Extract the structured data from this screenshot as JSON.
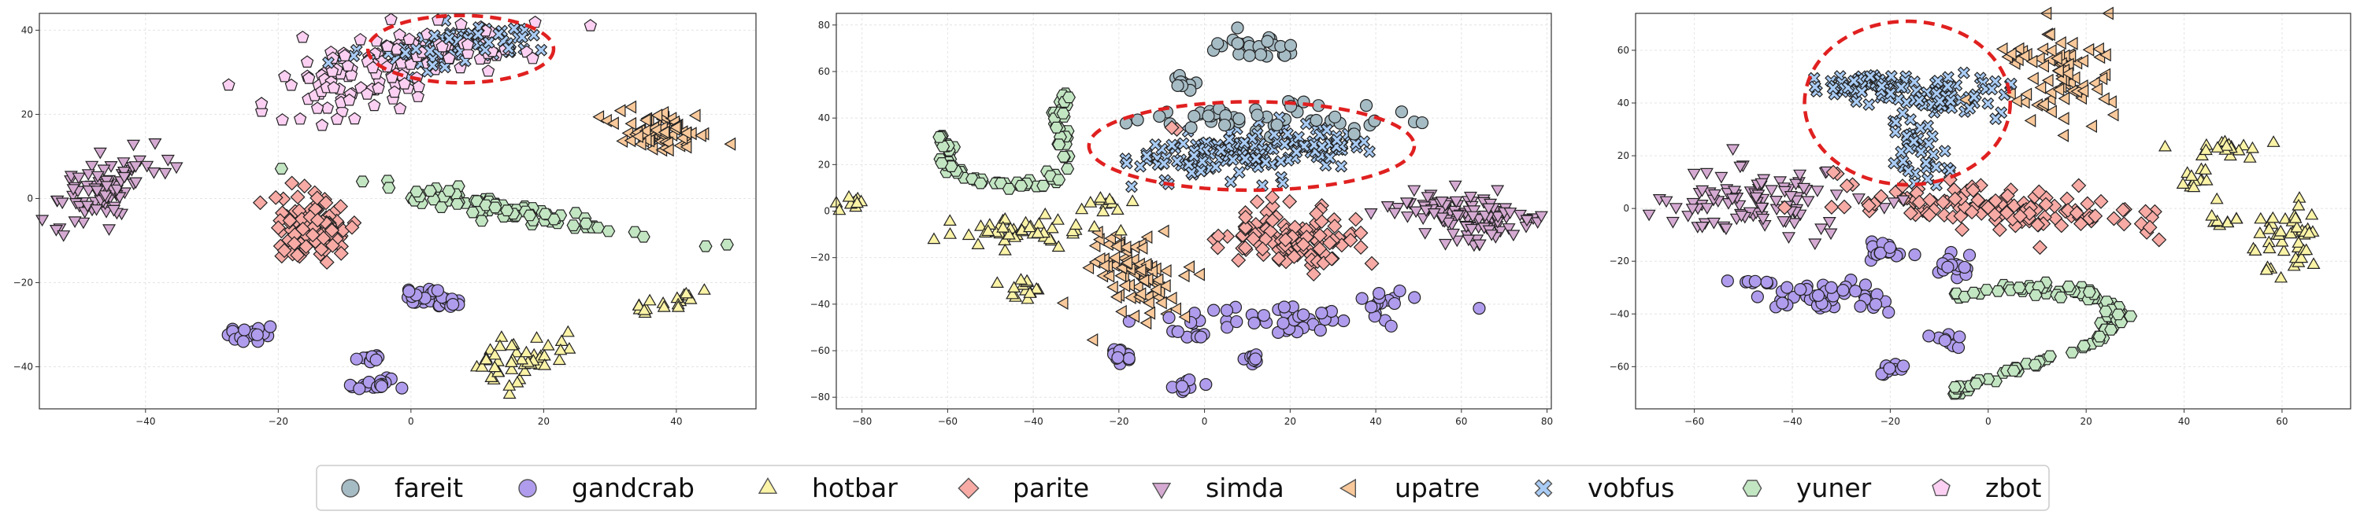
{
  "chart_data": [
    {
      "type": "scatter",
      "panel": "left",
      "title": "",
      "xlabel": "",
      "ylabel": "",
      "xlim": [
        -56,
        52
      ],
      "ylim": [
        -50,
        44
      ],
      "xticks": [
        -40,
        -20,
        0,
        20,
        40
      ],
      "yticks": [
        -40,
        -20,
        0,
        20,
        40
      ],
      "grid": true,
      "highlight_ellipse": {
        "cx": 7.5,
        "cy": 35.5,
        "rx": 14,
        "ry": 8
      },
      "clusters": [
        {
          "class": "zbot",
          "cx": -9,
          "cy": 28,
          "sx": 6.5,
          "sy": 5,
          "rot": 35,
          "n": 90
        },
        {
          "class": "zbot",
          "cx": 5,
          "cy": 36,
          "sx": 7,
          "sy": 2.5,
          "rot": 8,
          "n": 60
        },
        {
          "class": "vobfus",
          "cx": 7,
          "cy": 36,
          "sx": 7,
          "sy": 2.4,
          "rot": 8,
          "n": 90
        },
        {
          "class": "simda",
          "cx": -46,
          "cy": 3,
          "sx": 5,
          "sy": 3,
          "rot": 50,
          "n": 90
        },
        {
          "class": "parite",
          "cx": -14.5,
          "cy": -7,
          "sx": 3.2,
          "sy": 3.8,
          "rot": 0,
          "n": 110
        },
        {
          "class": "upatre",
          "cx": 38,
          "cy": 16,
          "sx": 3.6,
          "sy": 2.4,
          "rot": -5,
          "n": 75
        },
        {
          "class": "yuner",
          "cx": 14,
          "cy": -2.5,
          "sx": 12,
          "sy": 1.1,
          "rot": -16,
          "n": 85
        },
        {
          "class": "gandcrab",
          "cx": 2.5,
          "cy": -23.5,
          "sx": 2.2,
          "sy": 1.1,
          "rot": 0,
          "n": 30
        },
        {
          "class": "gandcrab",
          "cx": -24,
          "cy": -32.5,
          "sx": 2,
          "sy": 0.8,
          "rot": 0,
          "n": 20
        },
        {
          "class": "gandcrab",
          "cx": -6,
          "cy": -38.5,
          "sx": 1.4,
          "sy": 0.7,
          "rot": 0,
          "n": 10
        },
        {
          "class": "gandcrab",
          "cx": -6,
          "cy": -44,
          "sx": 2,
          "sy": 0.9,
          "rot": 0,
          "n": 18
        },
        {
          "class": "hotbar",
          "cx": 17,
          "cy": -38,
          "sx": 4,
          "sy": 2.6,
          "rot": 30,
          "n": 45
        },
        {
          "class": "hotbar",
          "cx": 38.5,
          "cy": -24.5,
          "sx": 2.2,
          "sy": 1.6,
          "rot": 20,
          "n": 18
        }
      ]
    },
    {
      "type": "scatter",
      "panel": "middle",
      "title": "",
      "xlabel": "",
      "ylabel": "",
      "xlim": [
        -86,
        81
      ],
      "ylim": [
        -85,
        85
      ],
      "xticks": [
        -80,
        -60,
        -40,
        -20,
        0,
        20,
        40,
        60,
        80
      ],
      "yticks": [
        -80,
        -60,
        -40,
        -20,
        0,
        20,
        40,
        60,
        80
      ],
      "grid": true,
      "highlight_ellipse": {
        "cx": 11,
        "cy": 28,
        "rx": 38,
        "ry": 19
      },
      "clusters": [
        {
          "class": "fareit",
          "cx": 12,
          "cy": 70,
          "sx": 5,
          "sy": 3,
          "rot": -15,
          "n": 30
        },
        {
          "class": "fareit",
          "cx": -5,
          "cy": 55,
          "sx": 2,
          "sy": 2,
          "rot": 0,
          "n": 10
        },
        {
          "class": "fareit",
          "cx": 10,
          "cy": 40,
          "sx": 14,
          "sy": 3,
          "rot": 0,
          "n": 55
        },
        {
          "class": "vobfus",
          "cx": 6,
          "cy": 24,
          "sx": 11,
          "sy": 5,
          "rot": 5,
          "n": 110
        },
        {
          "class": "vobfus",
          "cx": 26,
          "cy": 30,
          "sx": 6,
          "sy": 5,
          "rot": 0,
          "n": 50
        },
        {
          "class": "parite",
          "cx": 21,
          "cy": -12,
          "sx": 8,
          "sy": 6,
          "rot": -30,
          "n": 120
        },
        {
          "class": "parite",
          "cx": -7,
          "cy": 36,
          "sx": 1,
          "sy": 1,
          "rot": 0,
          "n": 2
        },
        {
          "class": "simda",
          "cx": 59,
          "cy": 0,
          "sx": 10,
          "sy": 3.5,
          "rot": -15,
          "n": 80
        },
        {
          "class": "simda",
          "cx": 64,
          "cy": -8,
          "sx": 4,
          "sy": 4,
          "rot": 0,
          "n": 30
        },
        {
          "class": "upatre",
          "cx": -16,
          "cy": -25,
          "sx": 5,
          "sy": 9,
          "rot": 20,
          "n": 90
        },
        {
          "class": "hotbar",
          "cx": -44,
          "cy": -10,
          "sx": 8,
          "sy": 3,
          "rot": 0,
          "n": 45
        },
        {
          "class": "hotbar",
          "cx": -42,
          "cy": -33,
          "sx": 3,
          "sy": 3,
          "rot": 0,
          "n": 15
        },
        {
          "class": "hotbar",
          "cx": -82,
          "cy": 2,
          "sx": 2,
          "sy": 2,
          "rot": 0,
          "n": 10
        },
        {
          "class": "hotbar",
          "cx": -23,
          "cy": 3,
          "sx": 2.5,
          "sy": 2,
          "rot": 0,
          "n": 10
        },
        {
          "class": "gandcrab",
          "cx": 20,
          "cy": -46,
          "sx": 14,
          "sy": 3,
          "rot": 0,
          "n": 45
        },
        {
          "class": "gandcrab",
          "cx": -20,
          "cy": -62,
          "sx": 2,
          "sy": 2,
          "rot": 0,
          "n": 14
        },
        {
          "class": "gandcrab",
          "cx": -5,
          "cy": -75,
          "sx": 2,
          "sy": 1.5,
          "rot": 0,
          "n": 10
        },
        {
          "class": "gandcrab",
          "cx": 11,
          "cy": -64,
          "sx": 1.5,
          "sy": 1.5,
          "rot": 0,
          "n": 8
        },
        {
          "class": "gandcrab",
          "cx": -2,
          "cy": -54,
          "sx": 2,
          "sy": 1.5,
          "rot": 0,
          "n": 8
        },
        {
          "class": "gandcrab",
          "cx": 42,
          "cy": -38,
          "sx": 3,
          "sy": 2,
          "rot": 0,
          "n": 12
        }
      ],
      "curves": [
        {
          "class": "yuner",
          "n": 90,
          "spread": 0.9,
          "points": [
            [
              -61,
              32
            ],
            [
              -60,
              20
            ],
            [
              -55,
              14
            ],
            [
              -45,
              11
            ],
            [
              -38,
              12
            ],
            [
              -33,
              18
            ],
            [
              -33,
              30
            ],
            [
              -34,
              42
            ],
            [
              -32,
              52
            ]
          ]
        }
      ]
    },
    {
      "type": "scatter",
      "panel": "right",
      "title": "",
      "xlabel": "",
      "ylabel": "",
      "xlim": [
        -72,
        74
      ],
      "ylim": [
        -76,
        74
      ],
      "xticks": [
        -60,
        -40,
        -20,
        0,
        20,
        40,
        60
      ],
      "yticks": [
        -60,
        -40,
        -20,
        0,
        20,
        40,
        60
      ],
      "grid": true,
      "highlight_ellipse": {
        "cx": -16.5,
        "cy": 40,
        "rx": 21,
        "ry": 31
      },
      "clusters": [
        {
          "class": "vobfus",
          "cx": -22,
          "cy": 47,
          "sx": 6,
          "sy": 3,
          "rot": 0,
          "n": 70
        },
        {
          "class": "vobfus",
          "cx": -8,
          "cy": 43,
          "sx": 6,
          "sy": 4,
          "rot": 0,
          "n": 45
        },
        {
          "class": "vobfus",
          "cx": -15,
          "cy": 24,
          "sx": 3,
          "sy": 9,
          "rot": 10,
          "n": 40
        },
        {
          "class": "parite",
          "cx": 2,
          "cy": 0,
          "sx": 17,
          "sy": 4,
          "rot": -8,
          "n": 130
        },
        {
          "class": "simda",
          "cx": -48,
          "cy": 3,
          "sx": 10,
          "sy": 7,
          "rot": 0,
          "n": 100
        },
        {
          "class": "upatre",
          "cx": 15,
          "cy": 50,
          "sx": 5,
          "sy": 9,
          "rot": 0,
          "n": 80
        },
        {
          "class": "upatre",
          "cx": 6,
          "cy": 58,
          "sx": 2,
          "sy": 2,
          "rot": 0,
          "n": 8
        },
        {
          "class": "hotbar",
          "cx": 60,
          "cy": -12,
          "sx": 4,
          "sy": 7,
          "rot": 0,
          "n": 45
        },
        {
          "class": "hotbar",
          "cx": 50,
          "cy": 22,
          "sx": 5,
          "sy": 1.5,
          "rot": 0,
          "n": 18
        },
        {
          "class": "hotbar",
          "cx": 42,
          "cy": 10,
          "sx": 2,
          "sy": 3,
          "rot": 0,
          "n": 12
        },
        {
          "class": "hotbar",
          "cx": 49,
          "cy": -5,
          "sx": 2,
          "sy": 1.2,
          "rot": 0,
          "n": 8
        },
        {
          "class": "gandcrab",
          "cx": -33,
          "cy": -34,
          "sx": 7,
          "sy": 3,
          "rot": -10,
          "n": 45
        },
        {
          "class": "gandcrab",
          "cx": -20,
          "cy": -16,
          "sx": 3,
          "sy": 1.5,
          "rot": 0,
          "n": 18
        },
        {
          "class": "gandcrab",
          "cx": -8,
          "cy": -21,
          "sx": 2,
          "sy": 3,
          "rot": 0,
          "n": 15
        },
        {
          "class": "gandcrab",
          "cx": -20,
          "cy": -61,
          "sx": 1.5,
          "sy": 1.5,
          "rot": 0,
          "n": 10
        },
        {
          "class": "gandcrab",
          "cx": -8,
          "cy": -50,
          "sx": 2,
          "sy": 1.5,
          "rot": 0,
          "n": 10
        },
        {
          "class": "gandcrab",
          "cx": -47,
          "cy": -28,
          "sx": 2,
          "sy": 1,
          "rot": 0,
          "n": 8
        }
      ],
      "curves": [
        {
          "class": "yuner",
          "n": 110,
          "spread": 1.0,
          "points": [
            [
              -8,
              -34
            ],
            [
              5,
              -30
            ],
            [
              18,
              -31
            ],
            [
              25,
              -36
            ],
            [
              27,
              -42
            ],
            [
              22,
              -50
            ],
            [
              10,
              -58
            ],
            [
              -2,
              -66
            ],
            [
              -8,
              -69
            ]
          ]
        }
      ]
    }
  ],
  "legend": {
    "placement": "bottom-center",
    "items": [
      {
        "label": "fareit",
        "marker": "circle",
        "color": "#a6bcc5"
      },
      {
        "label": "gandcrab",
        "marker": "circle",
        "color": "#b09ced"
      },
      {
        "label": "hotbar",
        "marker": "triangle-up",
        "color": "#fbf3a6"
      },
      {
        "label": "parite",
        "marker": "diamond",
        "color": "#f8aaa5"
      },
      {
        "label": "simda",
        "marker": "triangle-down",
        "color": "#d5aad2"
      },
      {
        "label": "upatre",
        "marker": "triangle-left",
        "color": "#f9c99b"
      },
      {
        "label": "vobfus",
        "marker": "x",
        "color": "#a9ccf5"
      },
      {
        "label": "yuner",
        "marker": "hexagon",
        "color": "#c2e6c2"
      },
      {
        "label": "zbot",
        "marker": "pentagon",
        "color": "#fbd0f2"
      }
    ]
  }
}
